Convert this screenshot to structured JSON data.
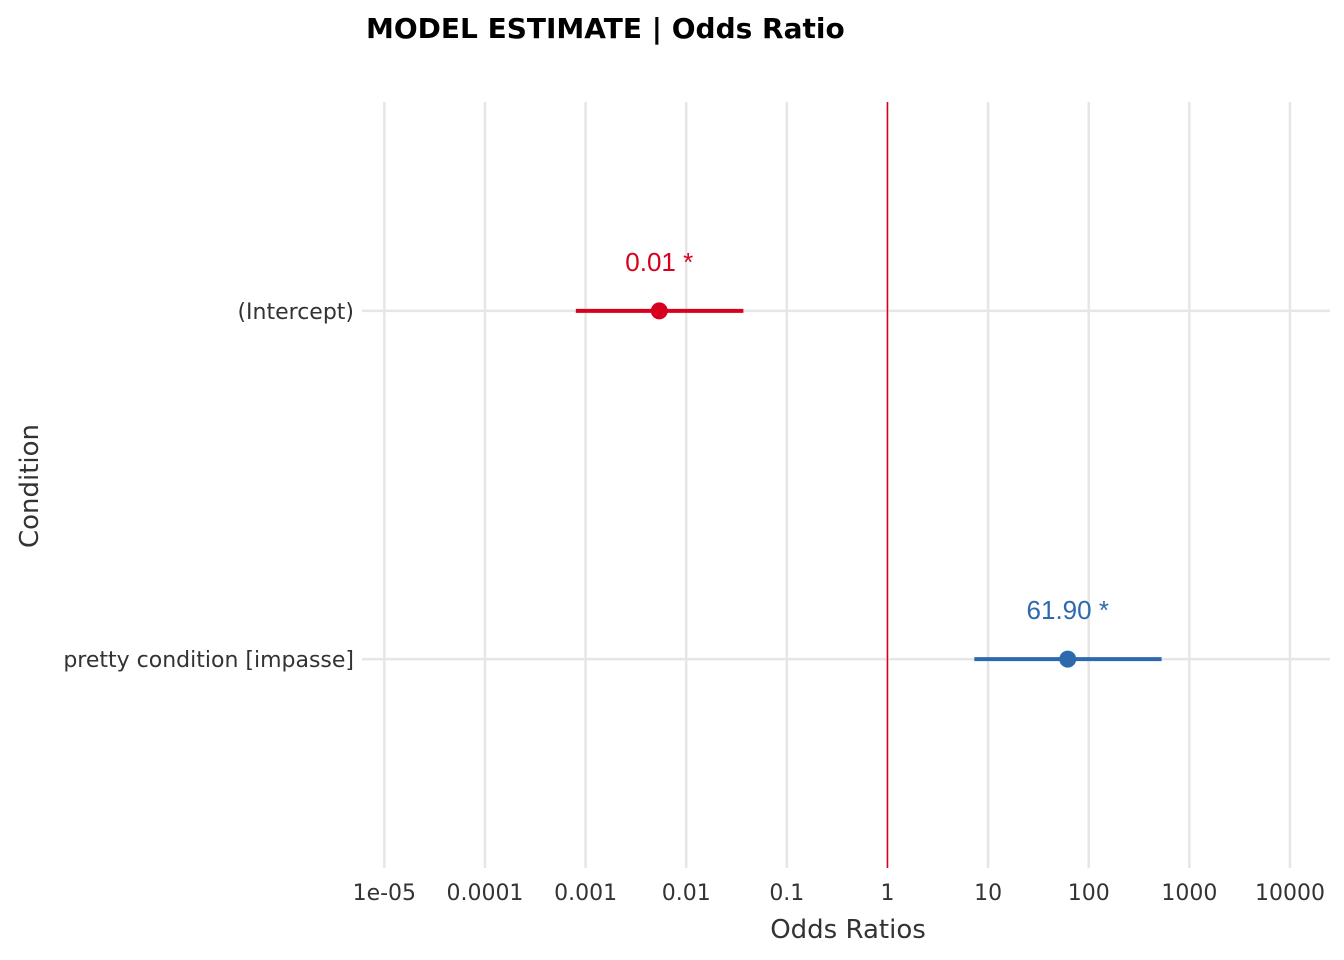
{
  "chart_data": {
    "type": "forest",
    "title": "MODEL ESTIMATE | Odds Ratio",
    "xlabel": "Odds Ratios",
    "ylabel": "Condition",
    "x_scale": "log10",
    "x_ticks": [
      "1e-05",
      "0.0001",
      "0.001",
      "0.01",
      "0.1",
      "1",
      "10",
      "100",
      "1000",
      "10000"
    ],
    "x_tick_values": [
      1e-05,
      0.0001,
      0.001,
      0.01,
      0.1,
      1,
      10,
      100,
      1000,
      10000
    ],
    "xlim": [
      6e-06,
      25000
    ],
    "reference_line": 1,
    "reference_color": "#D7001E",
    "grid": true,
    "terms": [
      {
        "name": "(Intercept)",
        "estimate": 0.0054,
        "ci_low": 0.0008,
        "ci_high": 0.037,
        "label": "0.01 *",
        "color": "#D7001E"
      },
      {
        "name": "pretty condition [impasse]",
        "estimate": 61.9,
        "ci_low": 7.3,
        "ci_high": 530,
        "label": "61.90 *",
        "color": "#2C6AAD"
      }
    ]
  }
}
